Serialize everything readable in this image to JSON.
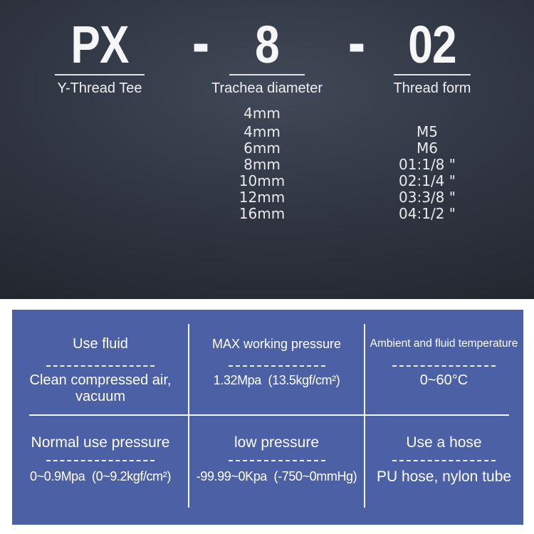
{
  "product_code": {
    "separator": "-",
    "segments": [
      {
        "code": "PX",
        "label": "Y-Thread Tee"
      },
      {
        "code": "8",
        "label": "Trachea diameter"
      },
      {
        "code": "02",
        "label": "Thread form"
      }
    ],
    "trachea_diameters": [
      "4mm",
      "4mm",
      "6mm",
      "8mm",
      "10mm",
      "12mm",
      "16mm"
    ],
    "thread_forms": [
      "M5",
      "M6",
      "01:1/8 \"",
      "02:1/4 \"",
      "03:3/8 \"",
      "04:1/2 \""
    ]
  },
  "spec_table": {
    "row1": [
      {
        "header": "Use fluid",
        "line1": "Clean compressed air,",
        "line2": "vacuum"
      },
      {
        "header": "MAX working pressure",
        "line1": "1.32Mpa (13.5kgf/cm²)"
      },
      {
        "header": "Ambient and fluid temperature",
        "line1": "0~60°C"
      }
    ],
    "row2": [
      {
        "header": "Normal use pressure",
        "line1": "0~0.9Mpa (0~9.2kgf/cm²)"
      },
      {
        "header": "low pressure",
        "line1": "-99.99~0Kpa (-750~0mmHg)"
      },
      {
        "header": "Use a hose",
        "line1": "PU hose, nylon tube"
      }
    ]
  },
  "colors": {
    "table_bg": "#4c60a6",
    "dark_bg_center": "#3a4150",
    "dark_bg_edge": "#1d2027",
    "divider": "#f3f5f9",
    "white": "#ffffff"
  }
}
